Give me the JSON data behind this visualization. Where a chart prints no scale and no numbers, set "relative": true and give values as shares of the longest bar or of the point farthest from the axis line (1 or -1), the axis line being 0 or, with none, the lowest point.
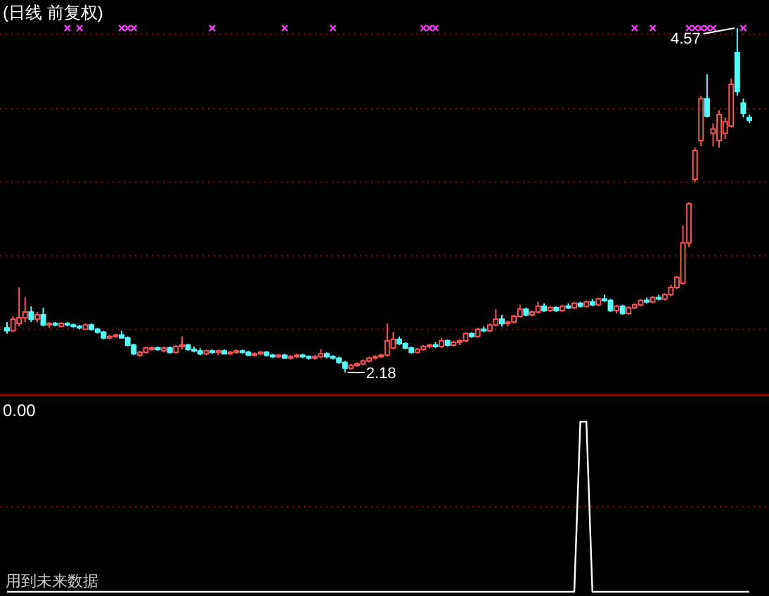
{
  "chart_data": [
    {
      "type": "candlestick",
      "title": "(日线 前复权)",
      "ref_lines": [
        {
          "axis": "y",
          "value": 4.53,
          "color": "#a00000",
          "line_style": "dotted"
        },
        {
          "axis": "y",
          "value": 4.01,
          "color": "#a00000",
          "line_style": "dotted"
        },
        {
          "axis": "y",
          "value": 3.5,
          "color": "#a00000",
          "line_style": "dotted"
        },
        {
          "axis": "y",
          "value": 2.99,
          "color": "#a00000",
          "line_style": "dotted"
        },
        {
          "axis": "y",
          "value": 2.48,
          "color": "#a00000",
          "line_style": "dotted"
        }
      ],
      "categories": [
        null,
        null,
        null,
        null,
        null,
        null,
        null,
        null,
        null,
        null,
        null,
        null,
        null,
        null,
        null,
        null,
        null,
        null,
        null,
        null,
        null,
        null,
        null,
        null,
        null,
        null,
        null,
        null,
        null,
        null,
        null,
        null,
        null,
        null,
        null,
        null,
        null,
        null,
        null,
        null,
        null,
        null,
        null,
        null,
        null,
        null,
        null,
        null,
        null,
        null,
        null,
        null,
        null,
        null,
        null,
        null,
        null,
        null,
        null,
        null,
        null,
        null,
        null,
        null,
        null,
        null,
        null,
        null,
        null,
        null,
        null,
        null,
        null,
        null,
        null,
        null,
        null,
        null,
        null,
        null,
        null,
        null,
        null,
        null,
        null,
        null,
        null,
        null,
        null,
        null,
        null,
        null,
        null,
        null,
        null,
        null,
        null,
        null,
        null,
        null,
        null,
        null,
        null,
        null,
        null,
        null,
        null,
        null,
        null,
        null,
        null,
        null,
        null,
        null,
        null,
        null,
        null,
        null,
        null,
        null,
        null,
        null,
        null,
        null
      ],
      "ohlc": [
        [
          2.49,
          2.53,
          2.45,
          2.47
        ],
        [
          2.47,
          2.57,
          2.46,
          2.55
        ],
        [
          2.52,
          2.77,
          2.5,
          2.56
        ],
        [
          2.56,
          2.7,
          2.53,
          2.6
        ],
        [
          2.6,
          2.64,
          2.53,
          2.55
        ],
        [
          2.55,
          2.6,
          2.53,
          2.58
        ],
        [
          2.58,
          2.63,
          2.5,
          2.51
        ],
        [
          2.51,
          2.53,
          2.49,
          2.52
        ],
        [
          2.52,
          2.53,
          2.5,
          2.51
        ],
        [
          2.5,
          2.53,
          2.5,
          2.52
        ],
        [
          2.52,
          2.53,
          2.5,
          2.51
        ],
        [
          2.51,
          2.52,
          2.49,
          2.5
        ],
        [
          2.5,
          2.51,
          2.48,
          2.49
        ],
        [
          2.48,
          2.52,
          2.48,
          2.51
        ],
        [
          2.51,
          2.52,
          2.47,
          2.48
        ],
        [
          2.48,
          2.49,
          2.45,
          2.46
        ],
        [
          2.46,
          2.47,
          2.41,
          2.42
        ],
        [
          2.42,
          2.44,
          2.41,
          2.43
        ],
        [
          2.43,
          2.45,
          2.42,
          2.44
        ],
        [
          2.44,
          2.47,
          2.42,
          2.42
        ],
        [
          2.42,
          2.43,
          2.36,
          2.37
        ],
        [
          2.37,
          2.38,
          2.3,
          2.31
        ],
        [
          2.3,
          2.33,
          2.29,
          2.32
        ],
        [
          2.32,
          2.36,
          2.31,
          2.35
        ],
        [
          2.34,
          2.36,
          2.33,
          2.35
        ],
        [
          2.35,
          2.36,
          2.33,
          2.34
        ],
        [
          2.33,
          2.36,
          2.32,
          2.35
        ],
        [
          2.35,
          2.36,
          2.31,
          2.32
        ],
        [
          2.32,
          2.37,
          2.31,
          2.36
        ],
        [
          2.36,
          2.43,
          2.34,
          2.37
        ],
        [
          2.37,
          2.38,
          2.33,
          2.34
        ],
        [
          2.34,
          2.36,
          2.32,
          2.33
        ],
        [
          2.33,
          2.35,
          2.3,
          2.31
        ],
        [
          2.31,
          2.34,
          2.3,
          2.33
        ],
        [
          2.33,
          2.34,
          2.31,
          2.32
        ],
        [
          2.32,
          2.34,
          2.3,
          2.33
        ],
        [
          2.33,
          2.34,
          2.31,
          2.31
        ],
        [
          2.31,
          2.33,
          2.3,
          2.32
        ],
        [
          2.32,
          2.34,
          2.31,
          2.33
        ],
        [
          2.33,
          2.34,
          2.31,
          2.32
        ],
        [
          2.32,
          2.33,
          2.3,
          2.3
        ],
        [
          2.3,
          2.32,
          2.29,
          2.31
        ],
        [
          2.31,
          2.33,
          2.3,
          2.32
        ],
        [
          2.32,
          2.33,
          2.29,
          2.3
        ],
        [
          2.3,
          2.31,
          2.28,
          2.29
        ],
        [
          2.29,
          2.31,
          2.28,
          2.3
        ],
        [
          2.3,
          2.31,
          2.28,
          2.28
        ],
        [
          2.28,
          2.3,
          2.27,
          2.29
        ],
        [
          2.29,
          2.31,
          2.28,
          2.3
        ],
        [
          2.3,
          2.31,
          2.28,
          2.29
        ],
        [
          2.29,
          2.3,
          2.27,
          2.28
        ],
        [
          2.28,
          2.3,
          2.27,
          2.29
        ],
        [
          2.29,
          2.34,
          2.28,
          2.31
        ],
        [
          2.31,
          2.32,
          2.28,
          2.29
        ],
        [
          2.29,
          2.3,
          2.27,
          2.28
        ],
        [
          2.28,
          2.29,
          2.24,
          2.25
        ],
        [
          2.25,
          2.26,
          2.18,
          2.21
        ],
        [
          2.21,
          2.24,
          2.2,
          2.23
        ],
        [
          2.23,
          2.25,
          2.22,
          2.24
        ],
        [
          2.24,
          2.27,
          2.23,
          2.26
        ],
        [
          2.26,
          2.29,
          2.25,
          2.28
        ],
        [
          2.28,
          2.3,
          2.27,
          2.29
        ],
        [
          2.29,
          2.31,
          2.28,
          2.3
        ],
        [
          2.3,
          2.52,
          2.29,
          2.4
        ],
        [
          2.35,
          2.46,
          2.34,
          2.41
        ],
        [
          2.41,
          2.43,
          2.37,
          2.38
        ],
        [
          2.38,
          2.39,
          2.34,
          2.35
        ],
        [
          2.35,
          2.36,
          2.31,
          2.32
        ],
        [
          2.32,
          2.35,
          2.31,
          2.34
        ],
        [
          2.34,
          2.37,
          2.33,
          2.36
        ],
        [
          2.36,
          2.38,
          2.35,
          2.37
        ],
        [
          2.37,
          2.39,
          2.35,
          2.36
        ],
        [
          2.36,
          2.42,
          2.35,
          2.4
        ],
        [
          2.4,
          2.41,
          2.36,
          2.37
        ],
        [
          2.37,
          2.4,
          2.36,
          2.39
        ],
        [
          2.39,
          2.41,
          2.37,
          2.4
        ],
        [
          2.4,
          2.46,
          2.39,
          2.45
        ],
        [
          2.45,
          2.46,
          2.42,
          2.43
        ],
        [
          2.43,
          2.49,
          2.42,
          2.48
        ],
        [
          2.48,
          2.5,
          2.46,
          2.47
        ],
        [
          2.47,
          2.52,
          2.46,
          2.51
        ],
        [
          2.51,
          2.62,
          2.5,
          2.55
        ],
        [
          2.55,
          2.58,
          2.5,
          2.52
        ],
        [
          2.52,
          2.54,
          2.5,
          2.53
        ],
        [
          2.53,
          2.58,
          2.52,
          2.57
        ],
        [
          2.57,
          2.65,
          2.56,
          2.62
        ],
        [
          2.62,
          2.63,
          2.57,
          2.58
        ],
        [
          2.58,
          2.61,
          2.57,
          2.6
        ],
        [
          2.6,
          2.67,
          2.59,
          2.64
        ],
        [
          2.64,
          2.66,
          2.6,
          2.61
        ],
        [
          2.61,
          2.64,
          2.6,
          2.63
        ],
        [
          2.63,
          2.64,
          2.6,
          2.61
        ],
        [
          2.61,
          2.65,
          2.6,
          2.64
        ],
        [
          2.64,
          2.66,
          2.62,
          2.63
        ],
        [
          2.63,
          2.67,
          2.62,
          2.66
        ],
        [
          2.66,
          2.67,
          2.63,
          2.64
        ],
        [
          2.64,
          2.68,
          2.63,
          2.67
        ],
        [
          2.67,
          2.69,
          2.64,
          2.65
        ],
        [
          2.65,
          2.7,
          2.64,
          2.69
        ],
        [
          2.69,
          2.72,
          2.67,
          2.68
        ],
        [
          2.68,
          2.69,
          2.6,
          2.61
        ],
        [
          2.61,
          2.65,
          2.59,
          2.64
        ],
        [
          2.64,
          2.65,
          2.58,
          2.59
        ],
        [
          2.59,
          2.64,
          2.58,
          2.63
        ],
        [
          2.63,
          2.66,
          2.62,
          2.65
        ],
        [
          2.65,
          2.69,
          2.64,
          2.68
        ],
        [
          2.68,
          2.7,
          2.66,
          2.67
        ],
        [
          2.67,
          2.71,
          2.66,
          2.7
        ],
        [
          2.7,
          2.72,
          2.68,
          2.69
        ],
        [
          2.69,
          2.73,
          2.68,
          2.72
        ],
        [
          2.72,
          2.79,
          2.71,
          2.77
        ],
        [
          2.77,
          2.85,
          2.76,
          2.84
        ],
        [
          2.8,
          3.2,
          2.79,
          3.08
        ],
        [
          3.08,
          3.36,
          3.05,
          3.35
        ],
        [
          3.52,
          3.74,
          3.5,
          3.72
        ],
        [
          3.79,
          4.1,
          3.75,
          4.08
        ],
        [
          4.08,
          4.25,
          3.95,
          3.96
        ],
        [
          3.84,
          3.91,
          3.75,
          3.87
        ],
        [
          3.79,
          4.0,
          3.74,
          3.97
        ],
        [
          3.84,
          3.95,
          3.8,
          3.92
        ],
        [
          3.89,
          4.22,
          3.88,
          4.18
        ],
        [
          4.4,
          4.57,
          4.1,
          4.13
        ],
        [
          4.05,
          4.08,
          3.95,
          3.98
        ],
        [
          3.95,
          3.97,
          3.91,
          3.93
        ]
      ],
      "series": [
        {
          "type": "scatter",
          "marker": "cross",
          "color": "#ff40ff",
          "values": [
            null,
            null,
            null,
            null,
            null,
            null,
            null,
            null,
            null,
            null,
            4.57,
            null,
            4.57,
            null,
            null,
            null,
            null,
            null,
            null,
            4.57,
            4.57,
            4.57,
            null,
            null,
            null,
            null,
            null,
            null,
            null,
            null,
            null,
            null,
            null,
            null,
            4.57,
            null,
            null,
            null,
            null,
            null,
            null,
            null,
            null,
            null,
            null,
            null,
            4.57,
            null,
            null,
            null,
            null,
            null,
            null,
            null,
            4.57,
            null,
            null,
            null,
            null,
            null,
            null,
            null,
            null,
            null,
            null,
            null,
            null,
            null,
            null,
            4.57,
            4.57,
            4.57,
            null,
            null,
            null,
            null,
            null,
            null,
            null,
            null,
            null,
            null,
            null,
            null,
            null,
            null,
            null,
            null,
            null,
            null,
            null,
            null,
            null,
            null,
            null,
            null,
            null,
            null,
            null,
            null,
            null,
            null,
            null,
            null,
            4.57,
            null,
            null,
            4.57,
            null,
            null,
            null,
            null,
            null,
            4.57,
            4.57,
            4.57,
            4.57,
            4.57,
            null,
            null,
            null,
            null,
            4.57,
            null
          ]
        }
      ],
      "annotations": [
        "4.57",
        "2.18"
      ]
    },
    {
      "type": "line",
      "title": "0.00",
      "relative": true,
      "color": "#ffffff",
      "ref_lines": [
        {
          "axis": "y",
          "value": 0.5,
          "color": "#a00000",
          "line_style": "dotted"
        }
      ],
      "categories": [
        null,
        null,
        null,
        null,
        null,
        null,
        null,
        null,
        null,
        null,
        null,
        null,
        null,
        null,
        null,
        null,
        null,
        null,
        null,
        null,
        null,
        null,
        null,
        null,
        null,
        null,
        null,
        null,
        null,
        null,
        null,
        null,
        null,
        null,
        null,
        null,
        null,
        null,
        null,
        null,
        null,
        null,
        null,
        null,
        null,
        null,
        null,
        null,
        null,
        null,
        null,
        null,
        null,
        null,
        null,
        null,
        null,
        null,
        null,
        null,
        null,
        null,
        null,
        null,
        null,
        null,
        null,
        null,
        null,
        null,
        null,
        null,
        null,
        null,
        null,
        null,
        null,
        null,
        null,
        null,
        null,
        null,
        null,
        null,
        null,
        null,
        null,
        null,
        null,
        null,
        null,
        null,
        null,
        null,
        null,
        null,
        null,
        null,
        null,
        null,
        null,
        null,
        null,
        null,
        null,
        null,
        null,
        null,
        null,
        null,
        null,
        null,
        null,
        null,
        null,
        null,
        null,
        null,
        null,
        null,
        null,
        null,
        null,
        null
      ],
      "values": [
        0,
        0,
        0,
        0,
        0,
        0,
        0,
        0,
        0,
        0,
        0,
        0,
        0,
        0,
        0,
        0,
        0,
        0,
        0,
        0,
        0,
        0,
        0,
        0,
        0,
        0,
        0,
        0,
        0,
        0,
        0,
        0,
        0,
        0,
        0,
        0,
        0,
        0,
        0,
        0,
        0,
        0,
        0,
        0,
        0,
        0,
        0,
        0,
        0,
        0,
        0,
        0,
        0,
        0,
        0,
        0,
        0,
        0,
        0,
        0,
        0,
        0,
        0,
        0,
        0,
        0,
        0,
        0,
        0,
        0,
        0,
        0,
        0,
        0,
        0,
        0,
        0,
        0,
        0,
        0,
        0,
        0,
        0,
        0,
        0,
        0,
        0,
        0,
        0,
        0,
        0,
        0,
        0,
        0,
        0,
        1,
        1,
        0,
        0,
        0,
        0,
        0,
        0,
        0,
        0,
        0,
        0,
        0,
        0,
        0,
        0,
        0,
        0,
        0,
        0,
        0,
        0,
        0,
        0,
        0,
        0,
        0,
        0,
        0
      ],
      "annotations": [
        "用到未来数据"
      ]
    }
  ]
}
